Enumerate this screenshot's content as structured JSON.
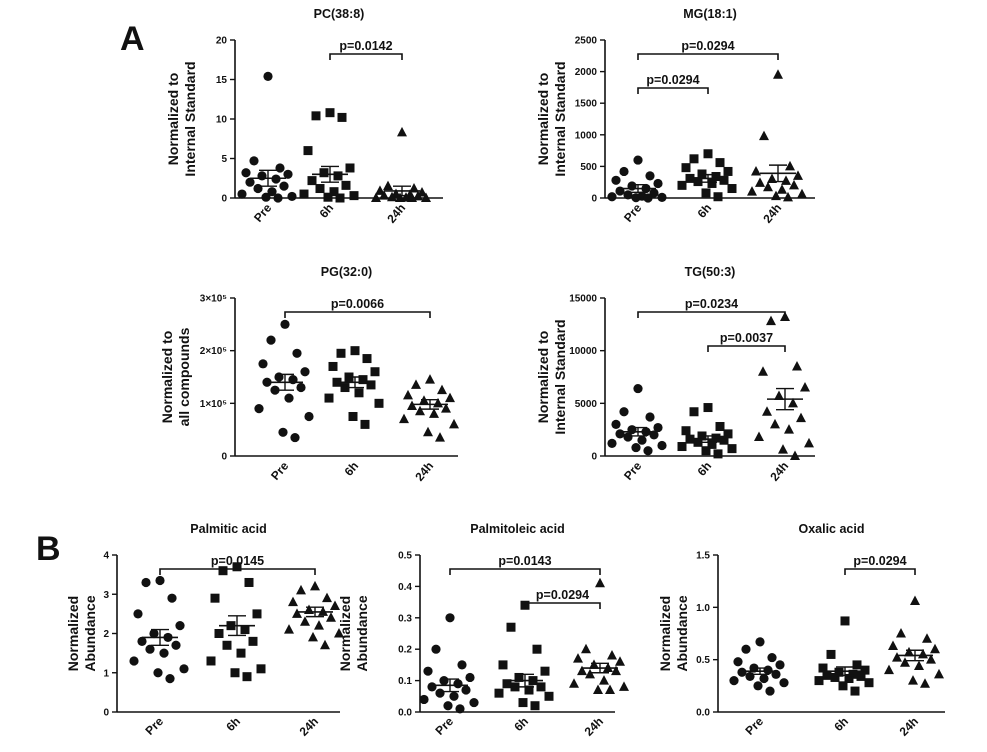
{
  "panel_labels": [
    "A",
    "B"
  ],
  "chart_data": [
    {
      "type": "scatter",
      "title": "PC(38:8)",
      "ylabel": [
        "Normalized to",
        "Internal Standard"
      ],
      "categories": [
        "Pre",
        "6h",
        "24h"
      ],
      "ylim": [
        0,
        20
      ],
      "yticks": [
        0,
        5,
        10,
        15,
        20
      ],
      "ytick_labels": [
        "0",
        "5",
        "10",
        "15",
        "20"
      ],
      "series": [
        {
          "marker": "circle",
          "values": [
            15.4,
            4.7,
            3.8,
            3.2,
            3.0,
            2.8,
            2.4,
            2.0,
            1.5,
            1.2,
            0.8,
            0.5,
            0.2,
            0.1,
            0.0
          ],
          "mean": 2.5,
          "sem": 1.0
        },
        {
          "marker": "square",
          "values": [
            10.8,
            10.4,
            10.2,
            6.0,
            3.8,
            3.2,
            2.8,
            2.2,
            1.6,
            1.2,
            0.8,
            0.5,
            0.3,
            0.1,
            0.0
          ],
          "mean": 3.0,
          "sem": 1.0
        },
        {
          "marker": "triangle",
          "values": [
            8.3,
            1.5,
            1.2,
            0.9,
            0.7,
            0.5,
            0.4,
            0.3,
            0.2,
            0.1,
            0.05,
            0.0,
            0.0,
            0.0,
            0.0
          ],
          "mean": 0.9,
          "sem": 0.6
        }
      ],
      "comparisons": [
        {
          "from": 1,
          "to": 2,
          "label": "p=0.0142"
        }
      ]
    },
    {
      "type": "scatter",
      "title": "MG(18:1)",
      "ylabel": [
        "Normalized to",
        "Internal Standard"
      ],
      "categories": [
        "Pre",
        "6h",
        "24h"
      ],
      "ylim": [
        0,
        2500
      ],
      "yticks": [
        0,
        500,
        1000,
        1500,
        2000,
        2500
      ],
      "ytick_labels": [
        "0",
        "500",
        "1000",
        "1500",
        "2000",
        "2500"
      ],
      "series": [
        {
          "marker": "circle",
          "values": [
            600,
            420,
            350,
            280,
            230,
            190,
            150,
            110,
            80,
            50,
            30,
            20,
            10,
            5,
            0
          ],
          "mean": 150,
          "sem": 60
        },
        {
          "marker": "square",
          "values": [
            700,
            620,
            560,
            480,
            420,
            380,
            340,
            310,
            280,
            260,
            230,
            200,
            150,
            80,
            20
          ],
          "mean": 310,
          "sem": 60
        },
        {
          "marker": "triangle",
          "values": [
            1950,
            980,
            500,
            420,
            350,
            300,
            270,
            240,
            200,
            170,
            130,
            100,
            60,
            30,
            10
          ],
          "mean": 390,
          "sem": 130
        }
      ],
      "comparisons": [
        {
          "from": 0,
          "to": 2,
          "label": "p=0.0294"
        },
        {
          "from": 0,
          "to": 1,
          "label": "p=0.0294"
        }
      ]
    },
    {
      "type": "scatter",
      "title": "PG(32:0)",
      "ylabel": [
        "Normalized to",
        "all compounds"
      ],
      "categories": [
        "Pre",
        "6h",
        "24h"
      ],
      "ylim": [
        0,
        300000
      ],
      "yticks": [
        0,
        100000,
        200000,
        300000
      ],
      "ytick_labels": [
        "0",
        "1×10⁵",
        "2×10⁵",
        "3×10⁵"
      ],
      "series": [
        {
          "marker": "circle",
          "values": [
            250000,
            220000,
            195000,
            175000,
            160000,
            150000,
            145000,
            140000,
            130000,
            125000,
            110000,
            90000,
            75000,
            45000,
            35000
          ],
          "mean": 140000,
          "sem": 15000
        },
        {
          "marker": "square",
          "values": [
            200000,
            195000,
            185000,
            170000,
            160000,
            150000,
            145000,
            140000,
            135000,
            130000,
            120000,
            110000,
            100000,
            75000,
            60000
          ],
          "mean": 140000,
          "sem": 10000
        },
        {
          "marker": "triangle",
          "values": [
            145000,
            135000,
            125000,
            115000,
            110000,
            105000,
            100000,
            95000,
            90000,
            85000,
            80000,
            70000,
            60000,
            45000,
            35000
          ],
          "mean": 98000,
          "sem": 9000
        }
      ],
      "comparisons": [
        {
          "from": 0,
          "to": 2,
          "label": "p=0.0066"
        }
      ]
    },
    {
      "type": "scatter",
      "title": "TG(50:3)",
      "ylabel": [
        "Normalized to",
        "Internal Standard"
      ],
      "categories": [
        "Pre",
        "6h",
        "24h"
      ],
      "ylim": [
        0,
        15000
      ],
      "yticks": [
        0,
        5000,
        10000,
        15000
      ],
      "ytick_labels": [
        "0",
        "5000",
        "10000",
        "15000"
      ],
      "series": [
        {
          "marker": "circle",
          "values": [
            6400,
            4200,
            3700,
            3000,
            2700,
            2500,
            2300,
            2100,
            2000,
            1800,
            1500,
            1200,
            1000,
            800,
            500
          ],
          "mean": 2300,
          "sem": 400
        },
        {
          "marker": "square",
          "values": [
            4600,
            4200,
            2800,
            2400,
            2100,
            1900,
            1700,
            1600,
            1500,
            1300,
            1100,
            900,
            700,
            500,
            200
          ],
          "mean": 1600,
          "sem": 300
        },
        {
          "marker": "triangle",
          "values": [
            13200,
            12800,
            8500,
            8000,
            6500,
            5700,
            5000,
            4200,
            3600,
            3000,
            2500,
            1800,
            1200,
            600,
            0
          ],
          "mean": 5400,
          "sem": 1000
        }
      ],
      "comparisons": [
        {
          "from": 0,
          "to": 2,
          "label": "p=0.0234"
        },
        {
          "from": 1,
          "to": 2,
          "label": "p=0.0037"
        }
      ]
    },
    {
      "type": "scatter",
      "title": "Palmitic acid",
      "ylabel": [
        "Normalized",
        "Abundance"
      ],
      "categories": [
        "Pre",
        "6h",
        "24h"
      ],
      "ylim": [
        0,
        4
      ],
      "yticks": [
        0,
        1,
        2,
        3,
        4
      ],
      "ytick_labels": [
        "0",
        "1",
        "2",
        "3",
        "4"
      ],
      "series": [
        {
          "marker": "circle",
          "values": [
            3.35,
            3.3,
            2.9,
            2.5,
            2.2,
            2.0,
            1.9,
            1.8,
            1.7,
            1.6,
            1.5,
            1.3,
            1.1,
            1.0,
            0.85
          ],
          "mean": 1.9,
          "sem": 0.2
        },
        {
          "marker": "square",
          "values": [
            3.7,
            3.6,
            3.3,
            2.9,
            2.5,
            2.2,
            2.1,
            2.0,
            1.8,
            1.7,
            1.5,
            1.3,
            1.1,
            1.0,
            0.9
          ],
          "mean": 2.2,
          "sem": 0.25
        },
        {
          "marker": "triangle",
          "values": [
            3.2,
            3.1,
            2.9,
            2.8,
            2.7,
            2.6,
            2.55,
            2.5,
            2.4,
            2.3,
            2.2,
            2.1,
            2.0,
            1.9,
            1.7
          ],
          "mean": 2.55,
          "sem": 0.12
        }
      ],
      "comparisons": [
        {
          "from": 0,
          "to": 2,
          "label": "p=0.0145"
        }
      ]
    },
    {
      "type": "scatter",
      "title": "Palmitoleic acid",
      "ylabel": [
        "Normalized",
        "Abundance"
      ],
      "categories": [
        "Pre",
        "6h",
        "24h"
      ],
      "ylim": [
        0,
        0.5
      ],
      "yticks": [
        0,
        0.1,
        0.2,
        0.3,
        0.4,
        0.5
      ],
      "ytick_labels": [
        "0.0",
        "0.1",
        "0.2",
        "0.3",
        "0.4",
        "0.5"
      ],
      "series": [
        {
          "marker": "circle",
          "values": [
            0.3,
            0.2,
            0.15,
            0.13,
            0.11,
            0.1,
            0.09,
            0.08,
            0.07,
            0.06,
            0.05,
            0.04,
            0.03,
            0.02,
            0.01
          ],
          "mean": 0.085,
          "sem": 0.02
        },
        {
          "marker": "square",
          "values": [
            0.34,
            0.27,
            0.2,
            0.15,
            0.13,
            0.11,
            0.1,
            0.09,
            0.08,
            0.08,
            0.07,
            0.06,
            0.05,
            0.03,
            0.02
          ],
          "mean": 0.1,
          "sem": 0.02
        },
        {
          "marker": "triangle",
          "values": [
            0.41,
            0.2,
            0.18,
            0.17,
            0.16,
            0.15,
            0.14,
            0.13,
            0.13,
            0.12,
            0.1,
            0.09,
            0.08,
            0.07,
            0.07
          ],
          "mean": 0.14,
          "sem": 0.015
        }
      ],
      "comparisons": [
        {
          "from": 0,
          "to": 2,
          "label": "p=0.0143"
        },
        {
          "from": 1,
          "to": 2,
          "label": "p=0.0294"
        }
      ]
    },
    {
      "type": "scatter",
      "title": "Oxalic acid",
      "ylabel": [
        "Normalized",
        "Abundance"
      ],
      "categories": [
        "Pre",
        "6h",
        "24h"
      ],
      "ylim": [
        0,
        1.5
      ],
      "yticks": [
        0,
        0.5,
        1.0,
        1.5
      ],
      "ytick_labels": [
        "0.0",
        "0.5",
        "1.0",
        "1.5"
      ],
      "series": [
        {
          "marker": "circle",
          "values": [
            0.67,
            0.6,
            0.52,
            0.48,
            0.45,
            0.42,
            0.4,
            0.38,
            0.36,
            0.34,
            0.32,
            0.3,
            0.28,
            0.25,
            0.2
          ],
          "mean": 0.39,
          "sem": 0.03
        },
        {
          "marker": "square",
          "values": [
            0.87,
            0.55,
            0.45,
            0.42,
            0.4,
            0.38,
            0.36,
            0.35,
            0.34,
            0.33,
            0.32,
            0.3,
            0.28,
            0.25,
            0.2
          ],
          "mean": 0.39,
          "sem": 0.04
        },
        {
          "marker": "triangle",
          "values": [
            1.06,
            0.75,
            0.7,
            0.63,
            0.6,
            0.57,
            0.55,
            0.52,
            0.5,
            0.47,
            0.44,
            0.4,
            0.36,
            0.3,
            0.27
          ],
          "mean": 0.54,
          "sem": 0.05
        }
      ],
      "comparisons": [
        {
          "from": 1,
          "to": 2,
          "label": "p=0.0294"
        }
      ]
    }
  ]
}
